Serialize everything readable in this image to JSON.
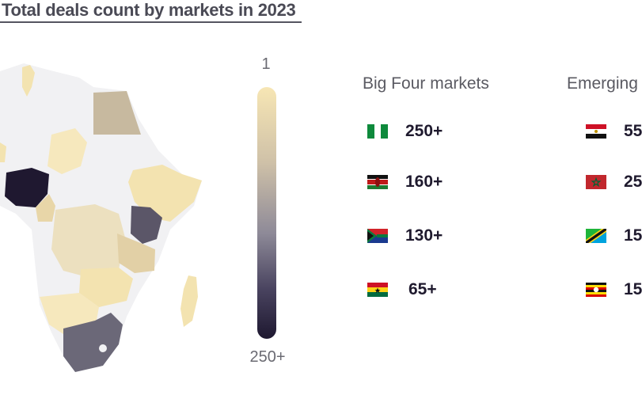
{
  "title": "Total deals count by markets in 2023",
  "scale": {
    "top_label": "1",
    "bottom_label": "250+"
  },
  "groups": [
    {
      "title": "Big Four markets",
      "items": [
        {
          "country": "Nigeria",
          "flag": "nigeria-flag-icon",
          "value": "250+"
        },
        {
          "country": "Kenya",
          "flag": "kenya-flag-icon",
          "value": "160+"
        },
        {
          "country": "South Africa",
          "flag": "south-africa-flag-icon",
          "value": "130+"
        },
        {
          "country": "Ghana",
          "flag": "ghana-flag-icon",
          "value": "65+"
        }
      ]
    },
    {
      "title": "Emerging",
      "items": [
        {
          "country": "Egypt",
          "flag": "egypt-flag-icon",
          "value": "55"
        },
        {
          "country": "Morocco",
          "flag": "morocco-flag-icon",
          "value": "25"
        },
        {
          "country": "Tanzania",
          "flag": "tanzania-flag-icon",
          "value": "15"
        },
        {
          "country": "Uganda",
          "flag": "uganda-flag-icon",
          "value": "15"
        }
      ]
    }
  ],
  "colors": {
    "scale_min": "#f7e6b4",
    "scale_max": "#1e1830",
    "no_data": "#f1f1f3",
    "light_tan": "#f3e3b0",
    "tan": "#e8d6a8",
    "mid_tan": "#c7b99f",
    "dark_grey": "#5b5668",
    "mid_grey": "#6b6878",
    "darkest": "#1f1830"
  }
}
